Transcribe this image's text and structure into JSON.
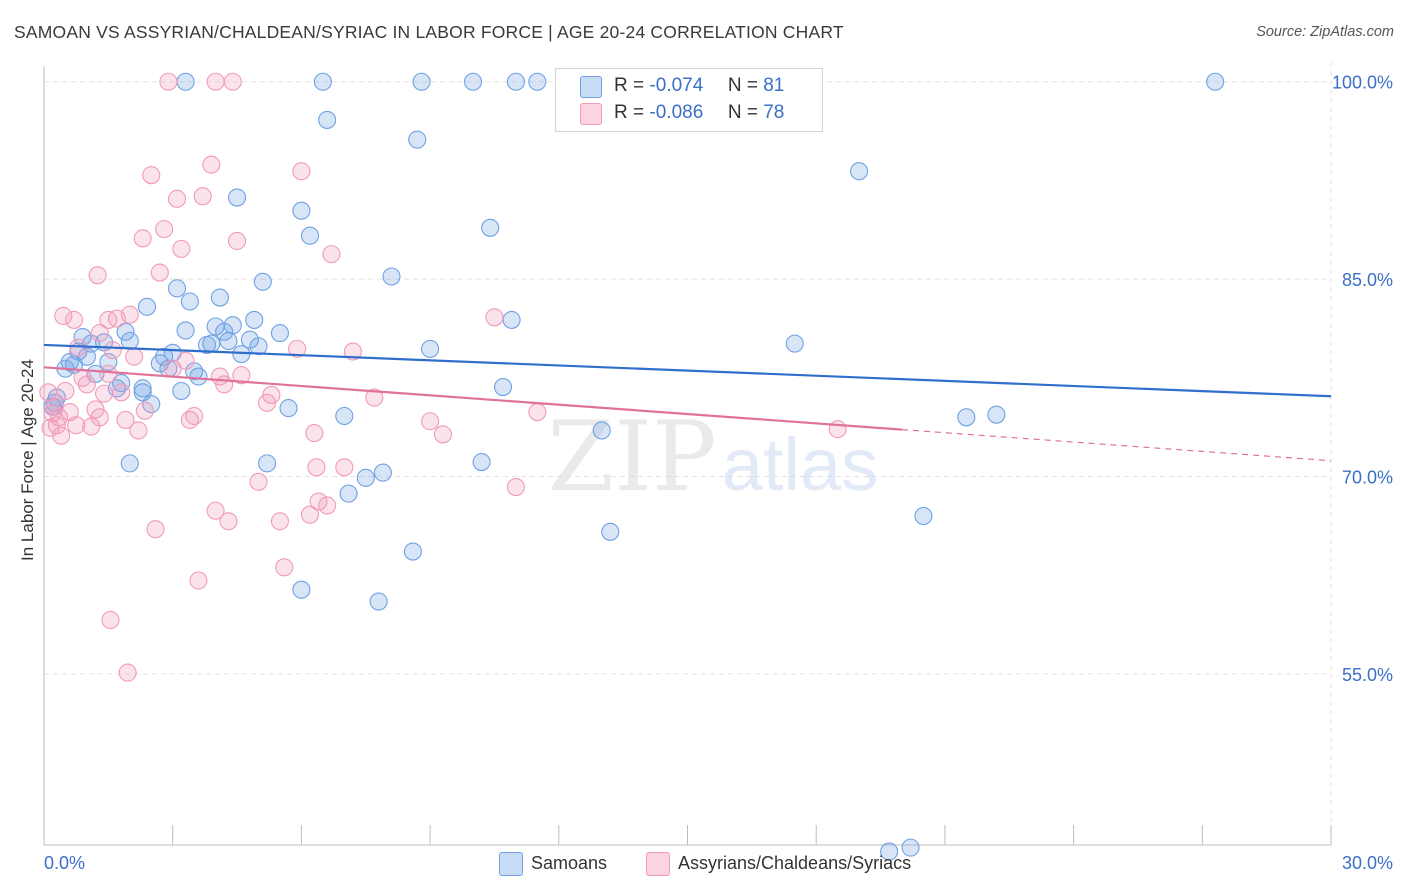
{
  "header": {
    "title": "SAMOAN VS ASSYRIAN/CHALDEAN/SYRIAC IN LABOR FORCE | AGE 20-24 CORRELATION CHART",
    "source": "Source: ZipAtlas.com"
  },
  "watermark": {
    "zip": "ZIP",
    "atlas": "atlas"
  },
  "legend": {
    "rows": [
      {
        "r_label": "R =",
        "r_value": "-0.074",
        "n_label": "N =",
        "n_value": "81",
        "color": "#6fa1e4"
      },
      {
        "r_label": "R =",
        "r_value": "-0.086",
        "n_label": "N =",
        "n_value": "78",
        "color": "#f29ab9"
      }
    ]
  },
  "bottom_legend": {
    "items": [
      {
        "label": "Samoans",
        "color": "#6fa1e4"
      },
      {
        "label": "Assyrians/Chaldeans/Syriacs",
        "color": "#f29ab9"
      }
    ]
  },
  "chart_data": {
    "type": "scatter",
    "title": "SAMOAN VS ASSYRIAN/CHALDEAN/SYRIAC IN LABOR FORCE | AGE 20-24 CORRELATION CHART",
    "xlabel": "",
    "ylabel": "In Labor Force | Age 20-24",
    "xlim": [
      0,
      30
    ],
    "ylim": [
      42,
      101.5
    ],
    "x_tick_labels": [
      "0.0%",
      "30.0%"
    ],
    "y_ticks": [
      55,
      70,
      85,
      100
    ],
    "y_tick_labels": [
      "55.0%",
      "70.0%",
      "85.0%",
      "100.0%"
    ],
    "grid": true,
    "legend_position": "top-center",
    "series": [
      {
        "name": "Samoans",
        "color": "#6fa1e4",
        "line_color": "#2f6fcb",
        "trend": {
          "x": [
            0,
            30
          ],
          "y": [
            80.0,
            76.1
          ],
          "dashed_from": null
        },
        "points": [
          [
            0.2,
            75.3
          ],
          [
            0.25,
            75.6
          ],
          [
            0.3,
            76.0
          ],
          [
            0.5,
            78.2
          ],
          [
            0.6,
            78.7
          ],
          [
            0.7,
            78.5
          ],
          [
            0.8,
            79.5
          ],
          [
            0.9,
            80.6
          ],
          [
            1.0,
            79.1
          ],
          [
            1.1,
            80.1
          ],
          [
            1.2,
            77.8
          ],
          [
            1.4,
            80.2
          ],
          [
            1.5,
            78.7
          ],
          [
            1.7,
            76.7
          ],
          [
            1.8,
            77.1
          ],
          [
            1.9,
            81.0
          ],
          [
            2.0,
            80.3
          ],
          [
            2.0,
            71.0
          ],
          [
            2.3,
            76.7
          ],
          [
            2.3,
            76.4
          ],
          [
            2.4,
            82.9
          ],
          [
            2.5,
            75.5
          ],
          [
            2.7,
            78.6
          ],
          [
            2.8,
            79.1
          ],
          [
            2.9,
            78.2
          ],
          [
            3.0,
            79.4
          ],
          [
            3.1,
            84.3
          ],
          [
            3.2,
            76.5
          ],
          [
            3.3,
            81.1
          ],
          [
            3.4,
            83.3
          ],
          [
            3.5,
            78.0
          ],
          [
            3.6,
            77.6
          ],
          [
            3.8,
            80.0
          ],
          [
            3.9,
            80.1
          ],
          [
            4.0,
            81.4
          ],
          [
            4.1,
            83.6
          ],
          [
            4.2,
            81.0
          ],
          [
            4.3,
            80.3
          ],
          [
            4.4,
            81.5
          ],
          [
            4.5,
            91.2
          ],
          [
            4.6,
            79.3
          ],
          [
            4.8,
            80.4
          ],
          [
            4.9,
            81.9
          ],
          [
            5.0,
            79.9
          ],
          [
            5.1,
            84.8
          ],
          [
            5.2,
            71.0
          ],
          [
            5.5,
            80.9
          ],
          [
            5.7,
            75.2
          ],
          [
            6.0,
            90.2
          ],
          [
            6.0,
            61.4
          ],
          [
            6.2,
            88.3
          ],
          [
            6.5,
            100.0
          ],
          [
            6.6,
            97.1
          ],
          [
            7.0,
            74.6
          ],
          [
            7.1,
            68.7
          ],
          [
            7.5,
            69.9
          ],
          [
            7.8,
            60.5
          ],
          [
            7.9,
            70.3
          ],
          [
            8.1,
            85.2
          ],
          [
            8.6,
            64.3
          ],
          [
            8.7,
            95.6
          ],
          [
            8.8,
            100.0
          ],
          [
            9.0,
            79.7
          ],
          [
            10.0,
            100.0
          ],
          [
            10.2,
            71.1
          ],
          [
            10.4,
            88.9
          ],
          [
            10.7,
            76.8
          ],
          [
            10.9,
            81.9
          ],
          [
            11.0,
            100.0
          ],
          [
            11.5,
            100.0
          ],
          [
            13.0,
            73.5
          ],
          [
            13.2,
            65.8
          ],
          [
            17.5,
            80.1
          ],
          [
            19.0,
            93.2
          ],
          [
            19.7,
            41.5
          ],
          [
            20.2,
            41.8
          ],
          [
            20.5,
            67.0
          ],
          [
            21.5,
            74.5
          ],
          [
            22.2,
            74.7
          ],
          [
            27.3,
            100.0
          ],
          [
            3.3,
            100.0
          ]
        ]
      },
      {
        "name": "Assyrians/Chaldeans/Syriacs",
        "color": "#f29ab9",
        "line_color": "#e0729a",
        "trend": {
          "x": [
            0,
            30
          ],
          "y": [
            78.3,
            71.2
          ],
          "dashed_from": 20.0
        },
        "points": [
          [
            0.1,
            76.4
          ],
          [
            0.15,
            73.7
          ],
          [
            0.2,
            74.8
          ],
          [
            0.25,
            75.3
          ],
          [
            0.3,
            73.9
          ],
          [
            0.35,
            74.5
          ],
          [
            0.4,
            73.1
          ],
          [
            0.45,
            82.2
          ],
          [
            0.5,
            76.5
          ],
          [
            0.6,
            74.9
          ],
          [
            0.7,
            81.9
          ],
          [
            0.75,
            73.9
          ],
          [
            0.8,
            79.8
          ],
          [
            0.9,
            77.5
          ],
          [
            1.0,
            77.0
          ],
          [
            1.1,
            73.8
          ],
          [
            1.2,
            75.1
          ],
          [
            1.25,
            85.3
          ],
          [
            1.3,
            80.9
          ],
          [
            1.4,
            76.3
          ],
          [
            1.5,
            81.9
          ],
          [
            1.55,
            59.1
          ],
          [
            1.6,
            79.6
          ],
          [
            1.7,
            82.0
          ],
          [
            1.8,
            76.4
          ],
          [
            1.9,
            74.3
          ],
          [
            1.95,
            55.1
          ],
          [
            2.0,
            82.3
          ],
          [
            2.1,
            79.1
          ],
          [
            2.2,
            73.5
          ],
          [
            2.3,
            88.1
          ],
          [
            2.35,
            75.0
          ],
          [
            2.5,
            92.9
          ],
          [
            2.6,
            66.0
          ],
          [
            2.7,
            85.5
          ],
          [
            2.8,
            88.8
          ],
          [
            3.0,
            78.2
          ],
          [
            3.1,
            91.1
          ],
          [
            3.2,
            87.3
          ],
          [
            3.3,
            78.8
          ],
          [
            3.4,
            74.3
          ],
          [
            3.5,
            74.6
          ],
          [
            3.6,
            62.1
          ],
          [
            3.7,
            91.3
          ],
          [
            3.9,
            93.7
          ],
          [
            4.0,
            67.4
          ],
          [
            4.1,
            77.6
          ],
          [
            4.2,
            77.0
          ],
          [
            4.3,
            66.6
          ],
          [
            4.5,
            87.9
          ],
          [
            4.6,
            77.7
          ],
          [
            5.0,
            69.6
          ],
          [
            5.2,
            75.6
          ],
          [
            5.3,
            76.2
          ],
          [
            5.5,
            66.6
          ],
          [
            5.6,
            63.1
          ],
          [
            5.9,
            79.7
          ],
          [
            6.0,
            93.2
          ],
          [
            6.2,
            67.1
          ],
          [
            6.3,
            73.3
          ],
          [
            6.35,
            70.7
          ],
          [
            6.4,
            68.1
          ],
          [
            6.6,
            67.8
          ],
          [
            6.7,
            86.9
          ],
          [
            7.0,
            70.7
          ],
          [
            7.2,
            79.5
          ],
          [
            7.7,
            76.0
          ],
          [
            9.0,
            74.2
          ],
          [
            9.3,
            73.2
          ],
          [
            10.5,
            82.1
          ],
          [
            11.0,
            69.2
          ],
          [
            11.5,
            74.9
          ],
          [
            18.5,
            73.6
          ],
          [
            2.9,
            100.0
          ],
          [
            4.0,
            100.0
          ],
          [
            4.4,
            100.0
          ],
          [
            1.3,
            74.5
          ],
          [
            1.5,
            77.8
          ]
        ]
      }
    ]
  }
}
